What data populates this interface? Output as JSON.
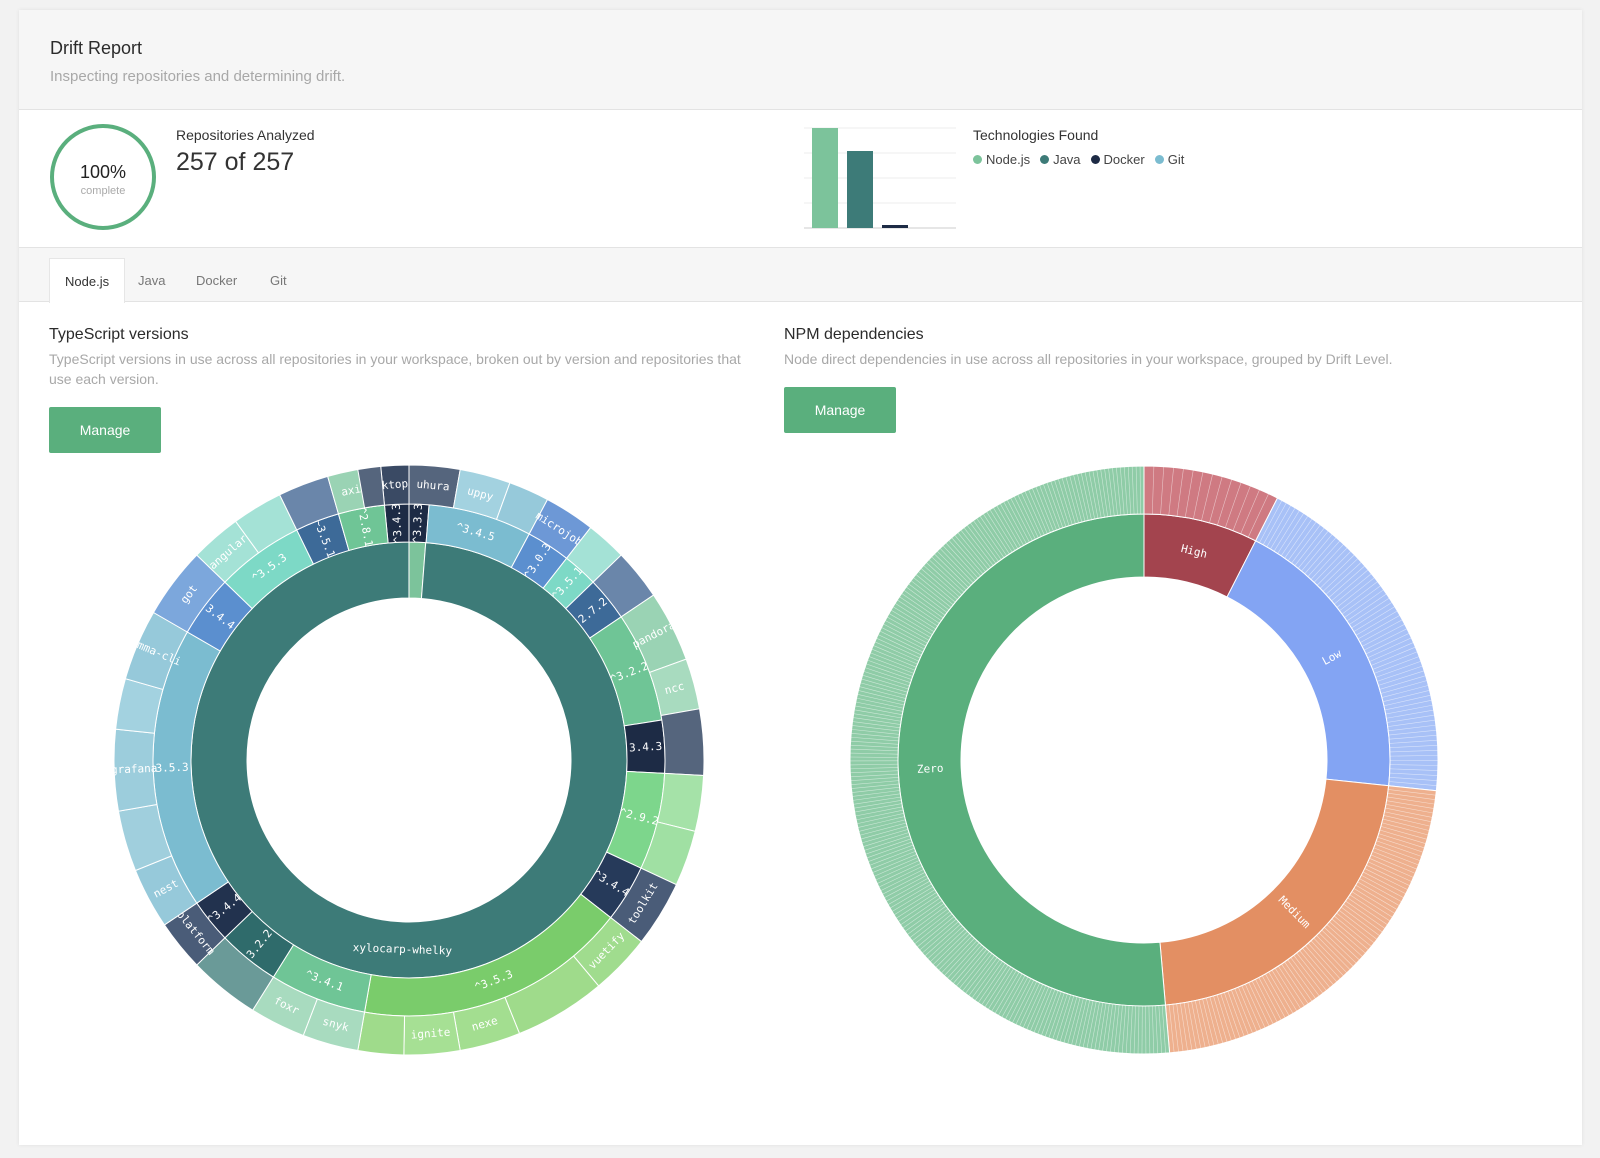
{
  "header": {
    "title": "Drift Report",
    "subtitle": "Inspecting repositories and determining drift."
  },
  "stats": {
    "progress_percent": 100,
    "progress_label": "100%",
    "progress_sub": "complete",
    "repos_label": "Repositories Analyzed",
    "repos_value": "257 of 257",
    "tech_title": "Technologies Found"
  },
  "tech_legend": [
    {
      "label": "Node.js",
      "color": "#7cc39b"
    },
    {
      "label": "Java",
      "color": "#3d7b78"
    },
    {
      "label": "Docker",
      "color": "#1d2b45"
    },
    {
      "label": "Git",
      "color": "#7bbcd0"
    }
  ],
  "chart_data": [
    {
      "type": "bar",
      "categories": [
        "Node.js",
        "Java",
        "Docker",
        "Git"
      ],
      "values": [
        100,
        77,
        3,
        0
      ],
      "colors": [
        "#7cc39b",
        "#3d7b78",
        "#1d2b45",
        "#7bbcd0"
      ],
      "grid": true,
      "legend": "right"
    }
  ],
  "tabs": [
    "Node.js",
    "Java",
    "Docker",
    "Git"
  ],
  "typescript": {
    "title": "TypeScript versions",
    "description_line1": "TypeScript versions in use across all repositories in your workspace, broken out by version and repositories that",
    "description_line2": "use each version.",
    "button": "Manage",
    "center_label": "xylocarp-whelky",
    "version_labels": [
      "^3.4.3",
      "^3.3.3",
      "^3.4.5",
      "^3.0.3",
      "^3.5.1",
      "2.7.2",
      "^3.2.2",
      "3.4.3",
      "^2.9.2",
      "^3.4.4",
      "^3.5.3",
      "^3.4.1",
      "3.2.2",
      "^3.4.4",
      "3.5.3",
      "3.4.4",
      "^3.5.3",
      "~3.5.1",
      "^2.8.1"
    ],
    "repo_labels": [
      "desktop",
      "uhura",
      "uppy",
      "microjob",
      "pandora",
      "ncc",
      "toolkit",
      "vuetify",
      "nexe",
      "ignite",
      "snyk",
      "foxr",
      "platform",
      "nest",
      "grafana",
      "emma-cli",
      "got",
      "angular",
      "axios"
    ]
  },
  "npm": {
    "title": "NPM dependencies",
    "description": "Node direct dependencies in use across all repositories in your workspace, grouped by Drift Level.",
    "button": "Manage",
    "levels": [
      "High",
      "Low",
      "Medium",
      "Zero"
    ]
  }
}
